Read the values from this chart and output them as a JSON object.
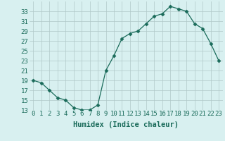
{
  "x": [
    0,
    1,
    2,
    3,
    4,
    5,
    6,
    7,
    8,
    9,
    10,
    11,
    12,
    13,
    14,
    15,
    16,
    17,
    18,
    19,
    20,
    21,
    22,
    23
  ],
  "y": [
    19,
    18.5,
    17,
    15.5,
    15,
    13.5,
    13,
    13,
    14,
    21,
    24,
    27.5,
    28.5,
    29,
    30.5,
    32,
    32.5,
    34,
    33.5,
    33,
    30.5,
    29.5,
    26.5,
    23
  ],
  "xlabel": "Humidex (Indice chaleur)",
  "ylim": [
    13,
    35
  ],
  "xlim": [
    -0.5,
    23.5
  ],
  "yticks": [
    13,
    15,
    17,
    19,
    21,
    23,
    25,
    27,
    29,
    31,
    33
  ],
  "xticks": [
    0,
    1,
    2,
    3,
    4,
    5,
    6,
    7,
    8,
    9,
    10,
    11,
    12,
    13,
    14,
    15,
    16,
    17,
    18,
    19,
    20,
    21,
    22,
    23
  ],
  "line_color": "#1a6b5a",
  "marker": "D",
  "marker_size": 2.5,
  "bg_color": "#d8f0f0",
  "grid_color": "#b0c8c8",
  "font_color": "#1a6b5a",
  "label_fontsize": 7.5,
  "tick_fontsize": 6.5
}
